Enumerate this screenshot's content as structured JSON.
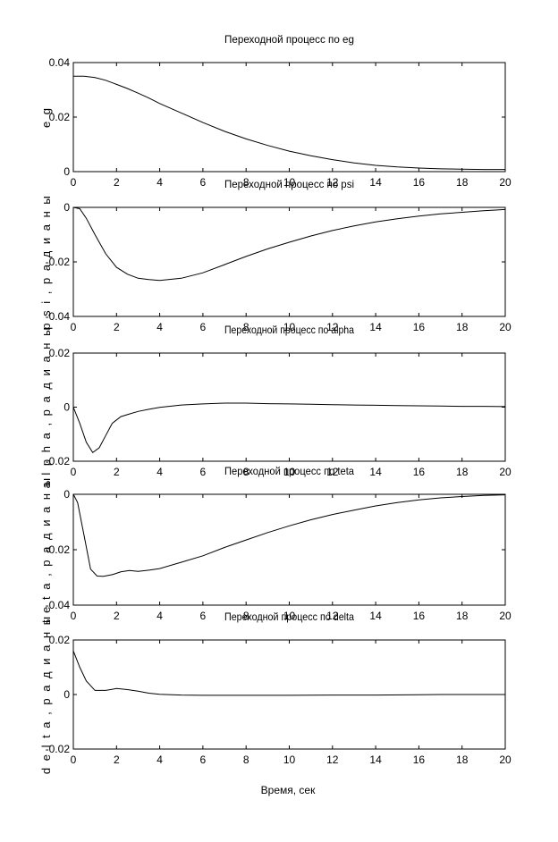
{
  "figure": {
    "xlabel": "Время, сек"
  },
  "chart_data": [
    {
      "type": "line",
      "title": "Переходной процесс по eg",
      "ylabel": "e g",
      "xlim": [
        0,
        20
      ],
      "ylim": [
        0,
        0.04
      ],
      "x_ticks": [
        0,
        2,
        4,
        6,
        8,
        10,
        12,
        14,
        16,
        18,
        20
      ],
      "y_ticks": [
        0,
        0.02,
        0.04
      ],
      "y_tick_labels": [
        "0",
        "0.02",
        "0.04"
      ],
      "series": [
        {
          "x": [
            0,
            0.5,
            1,
            1.5,
            2,
            2.5,
            3,
            3.5,
            4,
            5,
            6,
            7,
            8,
            9,
            10,
            11,
            12,
            13,
            14,
            15,
            16,
            17,
            18,
            19,
            20
          ],
          "y": [
            0.035,
            0.035,
            0.0345,
            0.0335,
            0.032,
            0.0305,
            0.0288,
            0.027,
            0.025,
            0.0215,
            0.018,
            0.0148,
            0.012,
            0.0096,
            0.0075,
            0.0058,
            0.0044,
            0.0032,
            0.0023,
            0.0017,
            0.0013,
            0.001,
            0.0009,
            0.0008,
            0.0008
          ]
        }
      ]
    },
    {
      "type": "line",
      "title": "Переходной процесс по psi",
      "ylabel": "p s i ,  р а д и а н ы",
      "xlim": [
        0,
        20
      ],
      "ylim": [
        -0.04,
        0
      ],
      "x_ticks": [
        0,
        2,
        4,
        6,
        8,
        10,
        12,
        14,
        16,
        18,
        20
      ],
      "y_ticks": [
        0,
        -0.02,
        -0.04
      ],
      "y_tick_labels": [
        "0",
        "-0.02",
        "-0.04"
      ],
      "series": [
        {
          "x": [
            0,
            0.3,
            0.6,
            1,
            1.5,
            2,
            2.5,
            3,
            3.5,
            4,
            5,
            6,
            7,
            8,
            9,
            10,
            11,
            12,
            13,
            14,
            15,
            16,
            17,
            18,
            19,
            20
          ],
          "y": [
            0,
            -0.0005,
            -0.004,
            -0.01,
            -0.017,
            -0.022,
            -0.0245,
            -0.026,
            -0.0265,
            -0.0268,
            -0.026,
            -0.024,
            -0.021,
            -0.018,
            -0.0152,
            -0.0128,
            -0.0105,
            -0.0085,
            -0.0068,
            -0.0053,
            -0.0042,
            -0.0032,
            -0.0024,
            -0.0018,
            -0.0012,
            -0.0008
          ]
        }
      ]
    },
    {
      "type": "line",
      "title": "Переходной процесс по alpha",
      "ylabel": "a l p h a ,  р а д и а н ы",
      "xlim": [
        0,
        20
      ],
      "ylim": [
        -0.02,
        0.02
      ],
      "x_ticks": [
        0,
        2,
        4,
        6,
        8,
        10,
        12,
        14,
        16,
        18,
        20
      ],
      "y_ticks": [
        0.02,
        0,
        -0.02
      ],
      "y_tick_labels": [
        "0.02",
        "0",
        "-0.02"
      ],
      "series": [
        {
          "x": [
            0,
            0.3,
            0.6,
            0.9,
            1.2,
            1.5,
            1.8,
            2.2,
            2.6,
            3,
            3.5,
            4,
            5,
            6,
            7,
            8,
            9,
            10,
            11,
            12,
            13,
            14,
            15,
            16,
            17,
            18,
            19,
            20
          ],
          "y": [
            0,
            -0.006,
            -0.013,
            -0.0168,
            -0.015,
            -0.0105,
            -0.006,
            -0.0035,
            -0.0025,
            -0.0016,
            -0.0008,
            -0.0001,
            0.0008,
            0.0012,
            0.0015,
            0.0015,
            0.0013,
            0.0012,
            0.0011,
            0.0009,
            0.0008,
            0.0007,
            0.0006,
            0.0005,
            0.0004,
            0.0003,
            0.0003,
            0.0002
          ]
        }
      ]
    },
    {
      "type": "line",
      "title": "Переходной процесс по teta",
      "ylabel": "t e t a ,  р а д и а н ы",
      "xlim": [
        0,
        20
      ],
      "ylim": [
        -0.04,
        0
      ],
      "x_ticks": [
        0,
        2,
        4,
        6,
        8,
        10,
        12,
        14,
        16,
        18,
        20
      ],
      "y_ticks": [
        0,
        -0.02,
        -0.04
      ],
      "y_tick_labels": [
        "0",
        "-0.02",
        "-0.04"
      ],
      "series": [
        {
          "x": [
            0,
            0.2,
            0.5,
            0.8,
            1.1,
            1.4,
            1.8,
            2.2,
            2.6,
            3,
            3.5,
            4,
            5,
            6,
            7,
            8,
            9,
            10,
            11,
            12,
            13,
            14,
            15,
            16,
            17,
            18,
            19,
            20
          ],
          "y": [
            0,
            -0.003,
            -0.015,
            -0.027,
            -0.0295,
            -0.0296,
            -0.029,
            -0.028,
            -0.0275,
            -0.0278,
            -0.0274,
            -0.0268,
            -0.0245,
            -0.0222,
            -0.0192,
            -0.0165,
            -0.0138,
            -0.0114,
            -0.0092,
            -0.0073,
            -0.0057,
            -0.0042,
            -0.003,
            -0.002,
            -0.0013,
            -0.0008,
            -0.0004,
            -0.0002
          ]
        }
      ]
    },
    {
      "type": "line",
      "title": "Переходной процесс по delta",
      "ylabel": "d e l t a ,  р а д и а н ы",
      "xlim": [
        0,
        20
      ],
      "ylim": [
        -0.02,
        0.02
      ],
      "x_ticks": [
        0,
        2,
        4,
        6,
        8,
        10,
        12,
        14,
        16,
        18,
        20
      ],
      "y_ticks": [
        0.02,
        0,
        -0.02
      ],
      "y_tick_labels": [
        "0.02",
        "0",
        "-0.02"
      ],
      "series": [
        {
          "x": [
            0,
            0.3,
            0.6,
            1,
            1.5,
            2,
            2.5,
            3,
            3.5,
            4,
            5,
            6,
            8,
            10,
            12,
            14,
            16,
            17,
            18,
            20
          ],
          "y": [
            0.016,
            0.01,
            0.005,
            0.0015,
            0.0015,
            0.0022,
            0.0018,
            0.0012,
            0.0005,
            0.0001,
            -0.0002,
            -0.0003,
            -0.0003,
            -0.0003,
            -0.0002,
            -0.0002,
            -0.0001,
            0,
            0,
            0
          ]
        }
      ]
    }
  ]
}
